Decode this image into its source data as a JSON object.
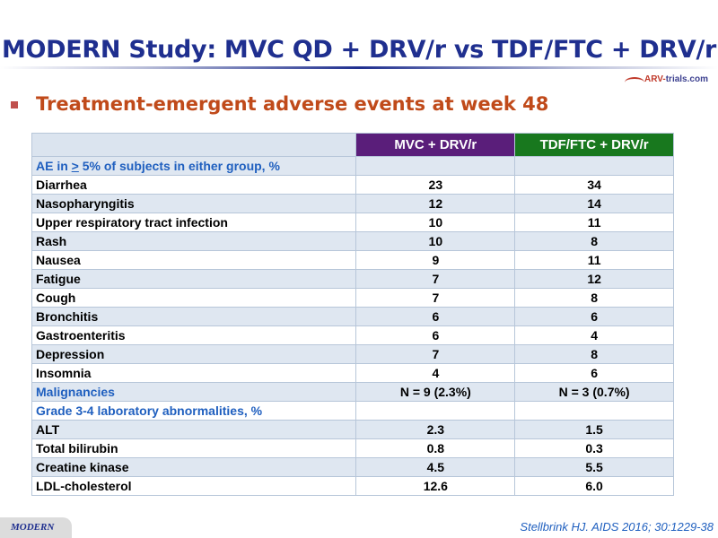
{
  "slide": {
    "title": "MODERN Study: MVC QD + DRV/r vs TDF/FTC + DRV/r",
    "bullet": "Treatment-emergent adverse events at week 48",
    "logo": {
      "prefix": "ARV-",
      "suffix": "trials.com"
    },
    "footer_tag": "MODERN",
    "citation": "Stellbrink HJ. AIDS 2016; 30:1229-38"
  },
  "table": {
    "headers": {
      "corner": "",
      "col1": "MVC + DRV/r",
      "col2": "TDF/FTC + DRV/r"
    },
    "rows": [
      {
        "label": "AE in > 5% of subjects in either group, %",
        "type": "section",
        "c1": "",
        "c2": ""
      },
      {
        "label": "Diarrhea",
        "type": "item",
        "c1": "23",
        "c2": "34"
      },
      {
        "label": "Nasopharyngitis",
        "type": "item",
        "c1": "12",
        "c2": "14"
      },
      {
        "label": "Upper respiratory tract infection",
        "type": "item",
        "c1": "10",
        "c2": "11"
      },
      {
        "label": "Rash",
        "type": "item",
        "c1": "10",
        "c2": "8"
      },
      {
        "label": "Nausea",
        "type": "item",
        "c1": "9",
        "c2": "11"
      },
      {
        "label": "Fatigue",
        "type": "item",
        "c1": "7",
        "c2": "12"
      },
      {
        "label": "Cough",
        "type": "item",
        "c1": "7",
        "c2": "8"
      },
      {
        "label": "Bronchitis",
        "type": "item",
        "c1": "6",
        "c2": "6"
      },
      {
        "label": "Gastroenteritis",
        "type": "item",
        "c1": "6",
        "c2": "4"
      },
      {
        "label": "Depression",
        "type": "item",
        "c1": "7",
        "c2": "8"
      },
      {
        "label": "Insomnia",
        "type": "item",
        "c1": "4",
        "c2": "6"
      },
      {
        "label": "Malignancies",
        "type": "section",
        "c1": "N = 9 (2.3%)",
        "c2": "N = 3 (0.7%)"
      },
      {
        "label": "Grade 3-4 laboratory abnormalities, %",
        "type": "section",
        "c1": "",
        "c2": ""
      },
      {
        "label": "ALT",
        "type": "item",
        "c1": "2.3",
        "c2": "1.5"
      },
      {
        "label": "Total bilirubin",
        "type": "item",
        "c1": "0.8",
        "c2": "0.3"
      },
      {
        "label": "Creatine kinase",
        "type": "item",
        "c1": "4.5",
        "c2": "5.5"
      },
      {
        "label": "LDL-cholesterol",
        "type": "item",
        "c1": "12.6",
        "c2": "6.0"
      }
    ]
  },
  "colors": {
    "title": "#1f2f8f",
    "bullet": "#c04a1a",
    "col1_header": "#5a1e7a",
    "col2_header": "#18781e",
    "section_text": "#1f5fbf",
    "row_alt": "#dfe7f1"
  }
}
